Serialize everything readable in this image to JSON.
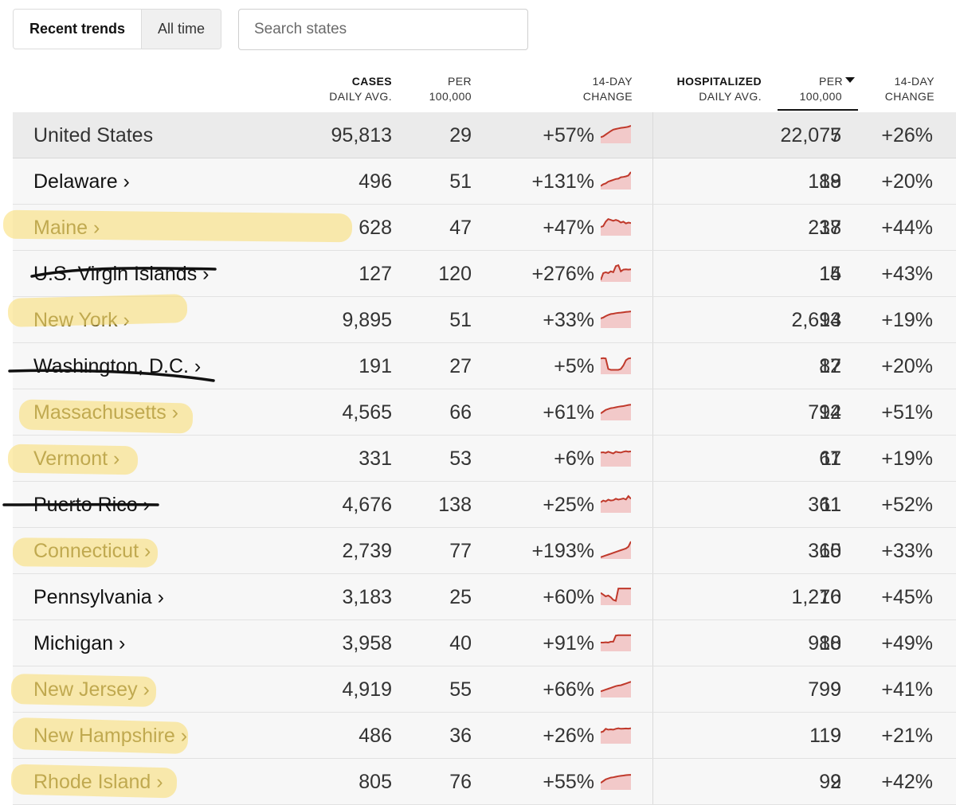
{
  "toggle": {
    "active": "Recent trends",
    "inactive": "All time"
  },
  "search": {
    "placeholder": "Search states"
  },
  "headers": {
    "cases": {
      "line1": "CASES",
      "line2": "DAILY AVG."
    },
    "cases_per": {
      "line1": "PER",
      "line2": "100,000"
    },
    "cases_change": {
      "line1": "14-DAY",
      "line2": "CHANGE"
    },
    "hosp": {
      "line1": "HOSPITALIZED",
      "line2": "DAILY AVG."
    },
    "hosp_per": {
      "line1": "PER",
      "line2": "100,000"
    },
    "hosp_change": {
      "line1": "14-DAY",
      "line2": "CHANGE"
    }
  },
  "colors": {
    "spark_line": "#c0392b",
    "spark_fill": "#f2c9c9",
    "highlight": "#fadc6e"
  },
  "rows": [
    {
      "name": "United States",
      "cases": "95,813",
      "per": "29",
      "change": "+57%",
      "hosp": "22,075",
      "hosp_per": "7",
      "hosp_change": "+26%",
      "spark": [
        0.35,
        0.4,
        0.5,
        0.6,
        0.7,
        0.78,
        0.82,
        0.85,
        0.88,
        0.9,
        0.92,
        0.95,
        1.0
      ]
    },
    {
      "name": "Delaware ›",
      "cases": "496",
      "per": "51",
      "change": "+131%",
      "hosp": "188",
      "hosp_per": "19",
      "hosp_change": "+20%",
      "spark": [
        0.2,
        0.3,
        0.35,
        0.45,
        0.5,
        0.55,
        0.6,
        0.62,
        0.7,
        0.72,
        0.75,
        0.8,
        1.0
      ]
    },
    {
      "name": "Maine ›",
      "cases": "628",
      "per": "47",
      "change": "+47%",
      "hosp": "237",
      "hosp_per": "18",
      "hosp_change": "+44%",
      "spark": [
        0.5,
        0.55,
        0.8,
        0.95,
        0.9,
        0.85,
        0.9,
        0.85,
        0.75,
        0.8,
        0.7,
        0.75,
        0.72
      ]
    },
    {
      "name": "U.S. Virgin Islands ›",
      "cases": "127",
      "per": "120",
      "change": "+276%",
      "hosp": "15",
      "hosp_per": "14",
      "hosp_change": "+43%",
      "spark": [
        0.1,
        0.5,
        0.55,
        0.5,
        0.6,
        0.55,
        0.9,
        0.95,
        0.6,
        0.7,
        0.72,
        0.7,
        0.72
      ]
    },
    {
      "name": "New York ›",
      "cases": "9,895",
      "per": "51",
      "change": "+33%",
      "hosp": "2,693",
      "hosp_per": "14",
      "hosp_change": "+19%",
      "spark": [
        0.55,
        0.6,
        0.68,
        0.75,
        0.8,
        0.82,
        0.85,
        0.87,
        0.88,
        0.9,
        0.92,
        0.93,
        0.95
      ]
    },
    {
      "name": "Washington, D.C. ›",
      "cases": "191",
      "per": "27",
      "change": "+5%",
      "hosp": "87",
      "hosp_per": "12",
      "hosp_change": "+20%",
      "spark": [
        0.9,
        0.92,
        0.9,
        0.3,
        0.25,
        0.25,
        0.25,
        0.25,
        0.3,
        0.5,
        0.8,
        0.9,
        0.92
      ]
    },
    {
      "name": "Massachusetts ›",
      "cases": "4,565",
      "per": "66",
      "change": "+61%",
      "hosp": "794",
      "hosp_per": "12",
      "hosp_change": "+51%",
      "spark": [
        0.4,
        0.5,
        0.6,
        0.65,
        0.7,
        0.72,
        0.75,
        0.78,
        0.8,
        0.82,
        0.85,
        0.88,
        0.9
      ]
    },
    {
      "name": "Vermont ›",
      "cases": "331",
      "per": "53",
      "change": "+6%",
      "hosp": "67",
      "hosp_per": "11",
      "hosp_change": "+19%",
      "spark": [
        0.8,
        0.82,
        0.78,
        0.85,
        0.8,
        0.75,
        0.85,
        0.82,
        0.8,
        0.85,
        0.88,
        0.85,
        0.87
      ]
    },
    {
      "name": "Puerto Rico ›",
      "cases": "4,676",
      "per": "138",
      "change": "+25%",
      "hosp": "361",
      "hosp_per": "11",
      "hosp_change": "+52%",
      "spark": [
        0.6,
        0.7,
        0.65,
        0.75,
        0.7,
        0.72,
        0.8,
        0.75,
        0.78,
        0.82,
        0.76,
        0.95,
        0.8
      ]
    },
    {
      "name": "Connecticut ›",
      "cases": "2,739",
      "per": "77",
      "change": "+193%",
      "hosp": "365",
      "hosp_per": "10",
      "hosp_change": "+33%",
      "spark": [
        0.1,
        0.15,
        0.2,
        0.25,
        0.3,
        0.35,
        0.4,
        0.45,
        0.5,
        0.55,
        0.6,
        0.7,
        1.0
      ]
    },
    {
      "name": "Pennsylvania ›",
      "cases": "3,183",
      "per": "25",
      "change": "+60%",
      "hosp": "1,276",
      "hosp_per": "10",
      "hosp_change": "+45%",
      "spark": [
        0.7,
        0.6,
        0.5,
        0.55,
        0.45,
        0.3,
        0.25,
        0.95,
        0.95,
        0.95,
        0.95,
        0.95,
        0.95
      ]
    },
    {
      "name": "Michigan ›",
      "cases": "3,958",
      "per": "40",
      "change": "+91%",
      "hosp": "988",
      "hosp_per": "10",
      "hosp_change": "+49%",
      "spark": [
        0.5,
        0.5,
        0.52,
        0.5,
        0.55,
        0.55,
        0.9,
        0.92,
        0.92,
        0.92,
        0.92,
        0.92,
        0.92
      ]
    },
    {
      "name": "New Jersey ›",
      "cases": "4,919",
      "per": "55",
      "change": "+66%",
      "hosp": "799",
      "hosp_per": "9",
      "hosp_change": "+41%",
      "spark": [
        0.35,
        0.4,
        0.45,
        0.5,
        0.55,
        0.6,
        0.65,
        0.68,
        0.7,
        0.75,
        0.8,
        0.85,
        0.9
      ]
    },
    {
      "name": "New Hampshire ›",
      "cases": "486",
      "per": "36",
      "change": "+26%",
      "hosp": "119",
      "hosp_per": "9",
      "hosp_change": "+21%",
      "spark": [
        0.65,
        0.7,
        0.85,
        0.8,
        0.82,
        0.8,
        0.85,
        0.88,
        0.85,
        0.86,
        0.87,
        0.86,
        0.88
      ]
    },
    {
      "name": "Rhode Island ›",
      "cases": "805",
      "per": "76",
      "change": "+55%",
      "hosp": "92",
      "hosp_per": "9",
      "hosp_change": "+42%",
      "spark": [
        0.4,
        0.5,
        0.6,
        0.65,
        0.7,
        0.72,
        0.75,
        0.78,
        0.8,
        0.82,
        0.84,
        0.85,
        0.86
      ]
    }
  ]
}
